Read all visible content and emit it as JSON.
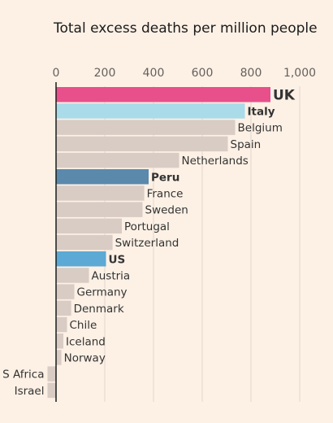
{
  "chart_data": {
    "type": "bar",
    "orientation": "horizontal",
    "title": "Total excess deaths per million people",
    "xlim": [
      0,
      1000
    ],
    "xticks": [
      0,
      200,
      400,
      600,
      800,
      1000
    ],
    "xtick_labels": [
      "0",
      "200",
      "400",
      "600",
      "800",
      "1,000"
    ],
    "grid": true,
    "categories": [
      "UK",
      "Italy",
      "Belgium",
      "Spain",
      "Netherlands",
      "Peru",
      "France",
      "Sweden",
      "Portugal",
      "Switzerland",
      "US",
      "Austria",
      "Germany",
      "Denmark",
      "Chile",
      "Iceland",
      "Norway",
      "S Africa",
      "Israel"
    ],
    "values": [
      880,
      775,
      735,
      705,
      505,
      380,
      362,
      355,
      270,
      232,
      205,
      135,
      75,
      62,
      45,
      30,
      22,
      -35,
      -35
    ],
    "colors": {
      "UK": "#e8508b",
      "Italy": "#aadbe9",
      "Peru": "#5a89ac",
      "US": "#5ba9d4",
      "default": "#d8ccc5"
    },
    "label_colors": {
      "UK": "#e8508b",
      "Italy": "#3ba0c3",
      "Peru": "#1f4e7a",
      "US": "#2e8bc4",
      "default": "#333333"
    }
  }
}
